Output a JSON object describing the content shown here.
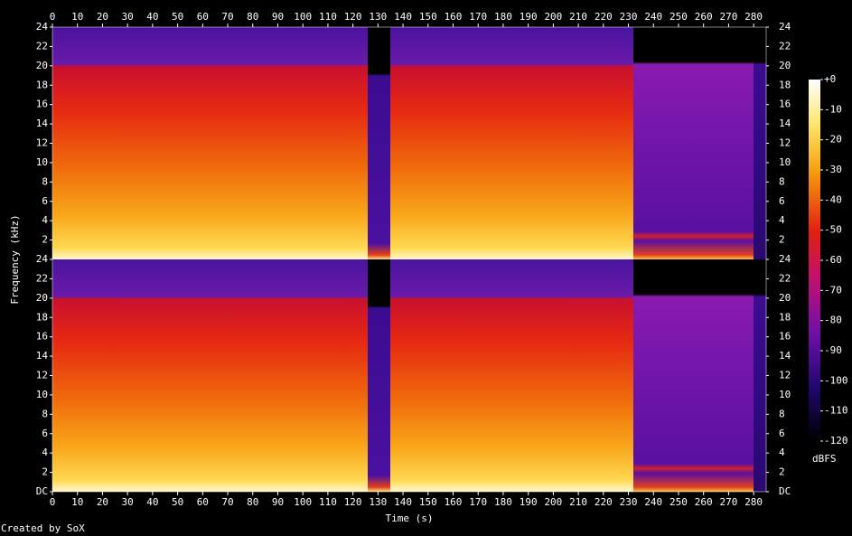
{
  "chart_data": {
    "type": "spectrogram",
    "x_label": "Time (s)",
    "y_label": "Frequency (kHz)",
    "xlim": [
      0,
      285
    ],
    "xticks": [
      0,
      10,
      20,
      30,
      40,
      50,
      60,
      70,
      80,
      90,
      100,
      110,
      120,
      130,
      140,
      150,
      160,
      170,
      180,
      190,
      200,
      210,
      220,
      230,
      240,
      250,
      260,
      270,
      280
    ],
    "channels": [
      {
        "ylim": [
          0,
          24
        ],
        "yticks": [
          2,
          4,
          6,
          8,
          10,
          12,
          14,
          16,
          18,
          20,
          22,
          24
        ]
      },
      {
        "ylim": [
          0,
          24
        ],
        "yticks": [
          {
            "value": 0,
            "label": "DC"
          },
          2,
          4,
          6,
          8,
          10,
          12,
          14,
          16,
          18,
          20,
          22,
          24
        ]
      }
    ],
    "colorbar": {
      "label": "dBFS",
      "lim": [
        -120,
        0
      ],
      "ticks": [
        {
          "value": 0,
          "label": "+0"
        },
        -10,
        -20,
        -30,
        -40,
        -50,
        -60,
        -70,
        -80,
        -90,
        -100,
        -110,
        -120
      ]
    },
    "footer": "Created by SoX"
  }
}
